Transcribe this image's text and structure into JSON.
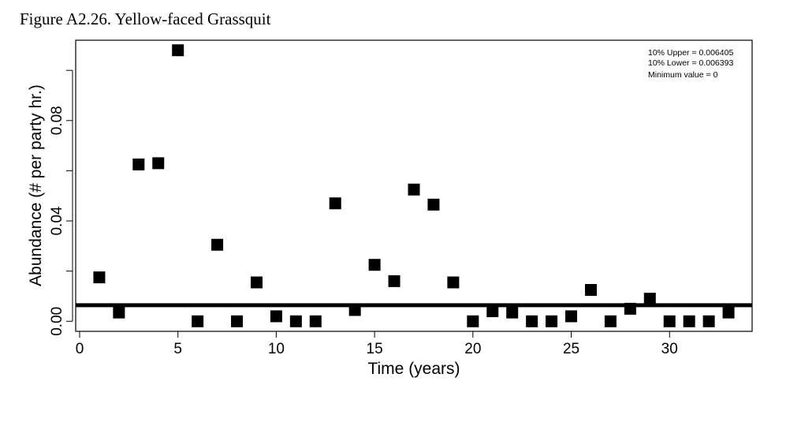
{
  "figure_title": "Figure A2.26. Yellow-faced Grassquit",
  "chart_data": {
    "type": "scatter",
    "title": "",
    "xlabel": "Time (years)",
    "ylabel": "Abundance (# per party hr.)",
    "xlim": [
      -0.2,
      34.2
    ],
    "ylim": [
      -0.004,
      0.112
    ],
    "xticks": [
      0,
      5,
      10,
      15,
      20,
      25,
      30
    ],
    "xtick_labels": [
      "0",
      "5",
      "10",
      "15",
      "20",
      "25",
      "30"
    ],
    "yticks": [
      0,
      0.02,
      0.04,
      0.06,
      0.08,
      0.1
    ],
    "ytick_labels": [
      "0.00",
      "",
      "0.04",
      "",
      "0.08",
      ""
    ],
    "grid": false,
    "legend_position": "top-right",
    "annotations": [
      "10% Upper = 0.006405",
      "10% Lower = 0.006393",
      "Minimum value = 0"
    ],
    "reference_line": 0.0064,
    "series": [
      {
        "x": [
          1,
          2,
          3,
          4,
          5,
          6,
          7,
          8,
          9,
          10,
          11,
          12,
          13,
          14,
          15,
          16,
          17,
          18,
          19,
          20,
          21,
          22,
          23,
          24,
          25,
          26,
          27,
          28,
          29,
          30,
          31,
          32,
          33
        ],
        "y": [
          0.0175,
          0.0035,
          0.0625,
          0.063,
          0.108,
          0,
          0.0305,
          0,
          0.0155,
          0.002,
          0,
          0,
          0.047,
          0.0045,
          0.0225,
          0.016,
          0.0525,
          0.0465,
          0.0155,
          0,
          0.004,
          0.0035,
          0,
          0,
          0.002,
          0.0125,
          0,
          0.005,
          0.009,
          0,
          0,
          0,
          0.0035
        ],
        "color": "#000000"
      }
    ]
  }
}
